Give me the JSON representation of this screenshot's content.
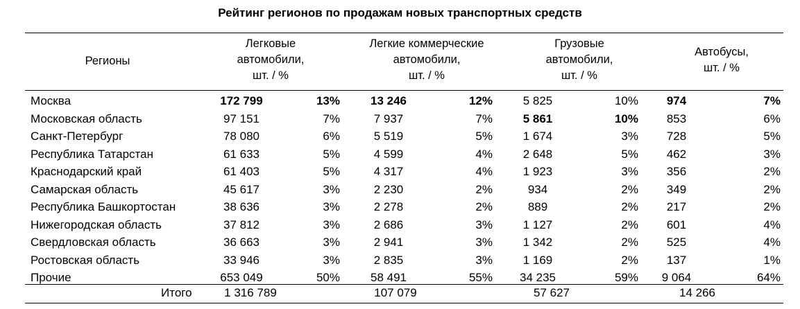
{
  "title": "Рейтинг регионов по продажам новых транспортных средств",
  "header": {
    "region": "Регионы",
    "cars": {
      "line1": "Легковые",
      "line2": "автомобили,",
      "unit": "шт. / %"
    },
    "lcv": {
      "line1": "Легкие коммерческие",
      "line2": "автомобили,",
      "unit": "шт. / %"
    },
    "trucks": {
      "line1": "Грузовые",
      "line2": "автомобили,",
      "unit": "шт. / %"
    },
    "buses": {
      "line1": "Автобусы,",
      "unit": "шт. / %"
    }
  },
  "rows": [
    {
      "region": "Москва",
      "cars": "172 799",
      "cars_pct": "13%",
      "lcv": "13 246",
      "lcv_pct": "12%",
      "trucks": "5 825",
      "trucks_pct": "10%",
      "buses": "974",
      "buses_pct": "7%"
    },
    {
      "region": "Московская область",
      "cars": "97 151",
      "cars_pct": "7%",
      "lcv": "7 937",
      "lcv_pct": "7%",
      "trucks": "5 861",
      "trucks_pct": "10%",
      "buses": "853",
      "buses_pct": "6%"
    },
    {
      "region": "Санкт-Петербург",
      "cars": "78 080",
      "cars_pct": "6%",
      "lcv": "5 519",
      "lcv_pct": "5%",
      "trucks": "1 674",
      "trucks_pct": "3%",
      "buses": "728",
      "buses_pct": "5%"
    },
    {
      "region": "Республика Татарстан",
      "cars": "61 633",
      "cars_pct": "5%",
      "lcv": "4 599",
      "lcv_pct": "4%",
      "trucks": "2 648",
      "trucks_pct": "5%",
      "buses": "462",
      "buses_pct": "3%"
    },
    {
      "region": "Краснодарский край",
      "cars": "61 403",
      "cars_pct": "5%",
      "lcv": "4 317",
      "lcv_pct": "4%",
      "trucks": "1 923",
      "trucks_pct": "3%",
      "buses": "356",
      "buses_pct": "2%"
    },
    {
      "region": "Самарская область",
      "cars": "45 617",
      "cars_pct": "3%",
      "lcv": "2 230",
      "lcv_pct": "2%",
      "trucks": "934",
      "trucks_pct": "2%",
      "buses": "349",
      "buses_pct": "2%"
    },
    {
      "region": "Республика Башкортостан",
      "cars": "38 636",
      "cars_pct": "3%",
      "lcv": "2 278",
      "lcv_pct": "2%",
      "trucks": "889",
      "trucks_pct": "2%",
      "buses": "217",
      "buses_pct": "2%"
    },
    {
      "region": "Нижегородская область",
      "cars": "37 812",
      "cars_pct": "3%",
      "lcv": "2 686",
      "lcv_pct": "3%",
      "trucks": "1 127",
      "trucks_pct": "2%",
      "buses": "601",
      "buses_pct": "4%"
    },
    {
      "region": "Свердловская область",
      "cars": "36 663",
      "cars_pct": "3%",
      "lcv": "2 941",
      "lcv_pct": "3%",
      "trucks": "1 342",
      "trucks_pct": "2%",
      "buses": "525",
      "buses_pct": "4%"
    },
    {
      "region": "Ростовская область",
      "cars": "33 946",
      "cars_pct": "3%",
      "lcv": "2 835",
      "lcv_pct": "3%",
      "trucks": "1 169",
      "trucks_pct": "2%",
      "buses": "137",
      "buses_pct": "1%"
    },
    {
      "region": "Прочие",
      "cars": "653 049",
      "cars_pct": "50%",
      "lcv": "58 491",
      "lcv_pct": "55%",
      "trucks": "34 235",
      "trucks_pct": "59%",
      "buses": "9 064",
      "buses_pct": "64%"
    }
  ],
  "totals": {
    "label": "Итого",
    "cars": "1 316 789",
    "lcv": "107 079",
    "trucks": "57 627",
    "buses": "14 266"
  }
}
